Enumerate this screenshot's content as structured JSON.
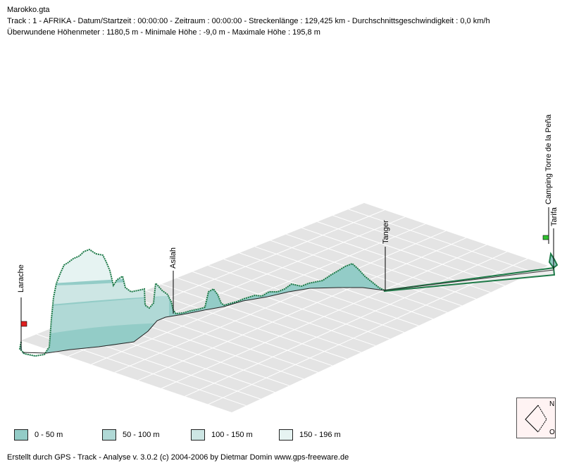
{
  "header": {
    "file": "Marokko.gta",
    "track_line": "Track : 1 - AFRIKA - Datum/Startzeit : 00:00:00 - Zeitraum : 00:00:00 - Streckenlänge : 129,425 km - Durchschnittsgeschwindigkeit : 0,0 km/h",
    "stats_line": "Überwundene Höhenmeter : 1180,5 m  -  Minimale Höhe : -9,0 m  -  Maximale Höhe : 195,8 m"
  },
  "waypoints": [
    "Larache",
    "Asilah",
    "Tanger",
    "Tarifa",
    "Camping Torre de la Peña"
  ],
  "legend": [
    {
      "label": "0 - 50 m",
      "color": "#93ccc7"
    },
    {
      "label": "50 - 100 m",
      "color": "#b0d9d6"
    },
    {
      "label": "100 - 150 m",
      "color": "#cde6e4"
    },
    {
      "label": "150 - 196 m",
      "color": "#e6f3f2"
    }
  ],
  "compass": {
    "north": "N",
    "east": "O"
  },
  "footer": "Erstellt durch  GPS - Track - Analyse   v. 3.0.2   (c) 2004-2006 by Dietmar Domin  www.gps-freeware.de",
  "colors": {
    "track": "#1e7a48",
    "plane": "#e4e4e4",
    "grid": "#ffffff",
    "start_flag": "#e02020",
    "end_flag": "#30c030"
  }
}
